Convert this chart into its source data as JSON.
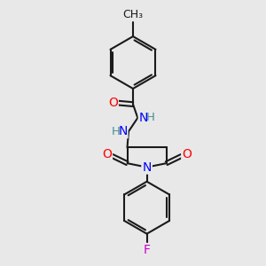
{
  "bg_color": "#e8e8e8",
  "bond_color": "#1a1a1a",
  "bond_width": 1.5,
  "atom_colors": {
    "O": "#ff0000",
    "N": "#0000ff",
    "F": "#cc00cc",
    "H": "#4a9090",
    "C": "#1a1a1a"
  },
  "font_size_atom": 10
}
